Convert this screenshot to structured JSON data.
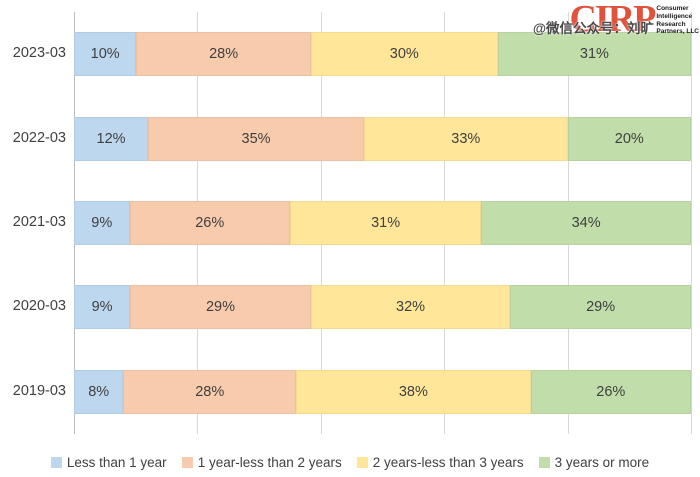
{
  "watermark": {
    "text": "@微信公众号：刘旷"
  },
  "logo": {
    "brand": "CIRP",
    "lines": [
      "Consumer",
      "Intelligence",
      "Research",
      "Partners, LLC"
    ]
  },
  "chart_data": {
    "type": "bar",
    "orientation": "horizontal-stacked",
    "categories": [
      "2023-03",
      "2022-03",
      "2021-03",
      "2020-03",
      "2019-03"
    ],
    "series": [
      {
        "name": "Less than 1 year",
        "color": "#BDD7EE",
        "values": [
          10,
          12,
          9,
          9,
          8
        ]
      },
      {
        "name": "1 year-less than 2 years",
        "color": "#F8CBAD",
        "values": [
          28,
          35,
          26,
          29,
          28
        ]
      },
      {
        "name": "2 years-less than 3 years",
        "color": "#FFE699",
        "values": [
          30,
          33,
          31,
          32,
          38
        ]
      },
      {
        "name": "3 years or more",
        "color": "#C1DDA9",
        "values": [
          31,
          20,
          34,
          29,
          26
        ]
      }
    ],
    "value_suffix": "%",
    "xlim": [
      0,
      100
    ],
    "x_gridlines_percent": [
      0,
      20,
      40,
      60,
      80,
      100
    ],
    "grid": true,
    "legend_position": "bottom",
    "title": "",
    "xlabel": "",
    "ylabel": ""
  }
}
